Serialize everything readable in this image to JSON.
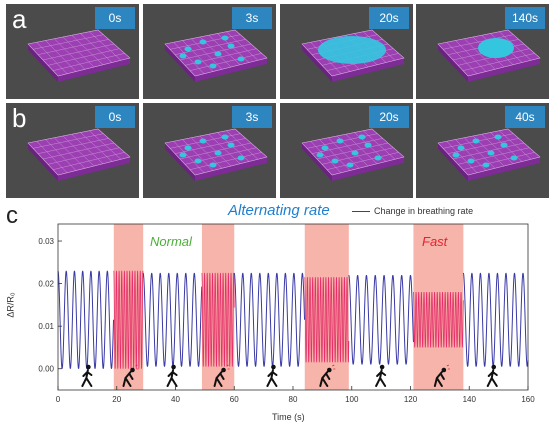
{
  "panel_a": {
    "letter": "a",
    "tiles": [
      {
        "time": "0s",
        "drops": 0
      },
      {
        "time": "3s",
        "drops": 1
      },
      {
        "time": "20s",
        "drops": 2
      },
      {
        "time": "140s",
        "drops": 3
      }
    ]
  },
  "panel_b": {
    "letter": "b",
    "tiles": [
      {
        "time": "0s",
        "drops": 0
      },
      {
        "time": "3s",
        "drops": 1
      },
      {
        "time": "20s",
        "drops": 1
      },
      {
        "time": "40s",
        "drops": 1
      }
    ]
  },
  "panel_c": {
    "letter": "c",
    "normal_label": "Normal",
    "fast_label": "Fast"
  },
  "colors": {
    "signal": "#3a3aa6",
    "highlight": "#f4a79b",
    "highlight_signal": "#e5306a",
    "title": "#1e7fd0",
    "normal": "#4caf3a",
    "fast": "#e5232f",
    "badge": "#2e86c1",
    "tile_bg": "#4b4b4b",
    "substrate": "#9c3fb3",
    "droplet": "#35c6df"
  },
  "chart_data": {
    "type": "line",
    "title": "Alternating rate",
    "xlabel": "Time (s)",
    "ylabel": "ΔR/R₀",
    "xlim": [
      0,
      160
    ],
    "ylim": [
      -0.005,
      0.034
    ],
    "xticks": [
      0,
      20,
      40,
      60,
      80,
      100,
      120,
      140,
      160
    ],
    "yticks": [
      0.0,
      0.01,
      0.02,
      0.03
    ],
    "ytick_labels": [
      "0.00",
      "0.01",
      "0.02",
      "0.03"
    ],
    "legend": "Change in breathing rate",
    "legend_position": "top-right",
    "highlight_regions": [
      [
        19,
        29
      ],
      [
        49,
        60
      ],
      [
        84,
        99
      ],
      [
        121,
        138
      ]
    ],
    "segments": [
      {
        "rate": "normal",
        "x": [
          0,
          19
        ],
        "period": 2.8,
        "amplitude": 0.023
      },
      {
        "rate": "fast",
        "x": [
          19,
          29
        ],
        "period": 0.9,
        "amplitude": 0.023
      },
      {
        "rate": "normal",
        "x": [
          29,
          49
        ],
        "period": 2.9,
        "amplitude": 0.022
      },
      {
        "rate": "fast",
        "x": [
          49,
          60
        ],
        "period": 0.9,
        "amplitude": 0.022
      },
      {
        "rate": "normal",
        "x": [
          60,
          84
        ],
        "period": 2.9,
        "amplitude": 0.022
      },
      {
        "rate": "fast",
        "x": [
          84,
          99
        ],
        "period": 0.9,
        "amplitude": 0.02
      },
      {
        "rate": "normal",
        "x": [
          99,
          121
        ],
        "period": 3.0,
        "amplitude": 0.021
      },
      {
        "rate": "fast",
        "x": [
          121,
          138
        ],
        "period": 0.9,
        "amplitude": 0.013
      },
      {
        "rate": "normal",
        "x": [
          138,
          160
        ],
        "period": 2.9,
        "amplitude": 0.022
      }
    ],
    "icons": [
      {
        "x": 10,
        "kind": "walking"
      },
      {
        "x": 24,
        "kind": "panting"
      },
      {
        "x": 39,
        "kind": "walking"
      },
      {
        "x": 55,
        "kind": "panting"
      },
      {
        "x": 73,
        "kind": "walking"
      },
      {
        "x": 91,
        "kind": "panting"
      },
      {
        "x": 110,
        "kind": "walking"
      },
      {
        "x": 130,
        "kind": "panting"
      },
      {
        "x": 148,
        "kind": "walking"
      }
    ]
  }
}
